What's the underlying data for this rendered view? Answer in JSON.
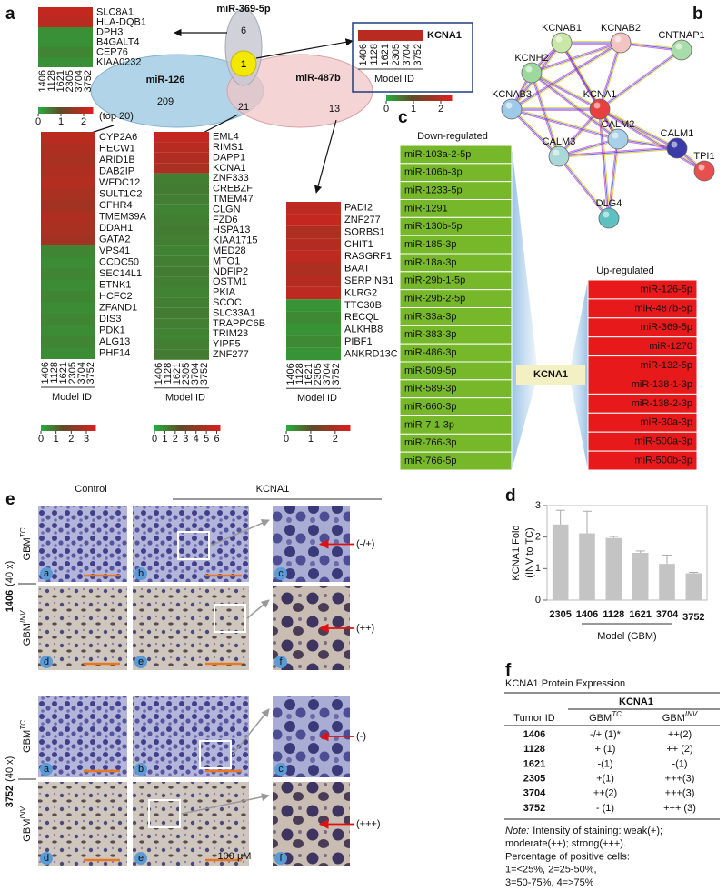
{
  "panel_labels": [
    "a",
    "b",
    "c",
    "d",
    "e",
    "f"
  ],
  "panel_a": {
    "venn": {
      "set_369": "miR-369-5p",
      "set_126": "miR-126",
      "set_487b": "miR-487b",
      "only_369": 6,
      "all_three": 1,
      "only_126": 209,
      "shared_126_487b": 21,
      "only_487b": 13,
      "top_note": "(top 20)"
    },
    "model_ids": [
      "1406",
      "1128",
      "1621",
      "2305",
      "3704",
      "3752"
    ],
    "model_axis_label": "Model  ID",
    "heatmaps": [
      {
        "genes": [
          "SLC8A1",
          "HLA-DQB1",
          "DPH3",
          "B4GALT4",
          "CEP76",
          "KIAA0232"
        ],
        "values": [
          2.1,
          2.0,
          0.3,
          0.3,
          0.4,
          0.3
        ],
        "scale_ticks": [
          0,
          1,
          2
        ],
        "scale_lim": [
          0,
          2.4
        ]
      },
      {
        "genes": [
          "KCNA1"
        ],
        "values": [
          2.0
        ],
        "scale_ticks": [
          0,
          1,
          2
        ],
        "scale_lim": [
          0,
          2.4
        ]
      },
      {
        "genes": [
          "CYP2A6",
          "HECW1",
          "ARID1B",
          "DAB2IP",
          "WFDC12",
          "SULT1C2",
          "CFHR4",
          "TMEM39A",
          "DDAH1",
          "GATA2",
          "VPS41",
          "CCDC50",
          "SEC14L1",
          "ETNK1",
          "HCFC2",
          "ZFAND1",
          "DIS3",
          "PDK1",
          "ALG13",
          "PHF14"
        ],
        "values": [
          3.0,
          2.8,
          2.7,
          2.8,
          2.9,
          2.7,
          2.6,
          2.8,
          2.7,
          2.6,
          0.6,
          0.5,
          0.6,
          0.5,
          0.6,
          0.5,
          0.6,
          0.5,
          0.6,
          0.5
        ],
        "scale_ticks": [
          0,
          1,
          2,
          3
        ],
        "scale_lim": [
          0,
          3.6
        ]
      },
      {
        "genes": [
          "EML4",
          "RIMS1",
          "DAPP1",
          "KCNA1",
          "ZNF333",
          "CREBZF",
          "TMEM47",
          "CLGN",
          "FZD6",
          "HSPA13",
          "KIAA1715",
          "MED28",
          "MTO1",
          "NDFIP2",
          "OSTM1",
          "PKIA",
          "SCOC",
          "SLC33A1",
          "TRAPPC6B",
          "TRIM23",
          "YIPF5",
          "ZNF277"
        ],
        "values": [
          5.5,
          5.2,
          5.0,
          4.8,
          1.2,
          1.3,
          1.2,
          1.1,
          1.2,
          1.3,
          1.2,
          1.1,
          1.2,
          1.3,
          1.2,
          1.1,
          1.2,
          1.3,
          1.2,
          1.1,
          1.2,
          1.3
        ],
        "scale_ticks": [
          0,
          1,
          2,
          3,
          4,
          5,
          6
        ],
        "scale_lim": [
          0,
          6.3
        ]
      },
      {
        "genes": [
          "PADI2",
          "ZNF277",
          "SORBS1",
          "CHIT1",
          "RASGRF1",
          "BAAT",
          "SERPINB1",
          "KLRG2",
          "TTC30B",
          "RECQL",
          "ALKHB8",
          "PIBF1",
          "ANKRD13C"
        ],
        "values": [
          2.2,
          2.3,
          2.0,
          2.1,
          2.2,
          2.0,
          2.1,
          2.2,
          0.3,
          0.4,
          0.3,
          0.4,
          0.3
        ],
        "scale_ticks": [
          0,
          1,
          2
        ],
        "scale_lim": [
          0,
          2.6
        ]
      }
    ]
  },
  "panel_b": {
    "nodes": [
      "KCNAB1",
      "KCNAB2",
      "CNTNAP1",
      "KCNH2",
      "KCNAB3",
      "KCNA1",
      "CALM2",
      "CALM1",
      "CALM3",
      "TPI1",
      "DLG4"
    ]
  },
  "panel_c": {
    "down_title": "Down-regulated",
    "down": [
      "miR-103a-2-5p",
      "miR-106b-3p",
      "miR-1233-5p",
      "miR-1291",
      "miR-130b-5p",
      "miR-185-3p",
      "miR-18a-3p",
      "miR-29b-1-5p",
      "miR-29b-2-5p",
      "miR-33a-3p",
      "miR-383-3p",
      "miR-486-3p",
      "miR-509-5p",
      "miR-589-3p",
      "miR-660-3p",
      "miR-7-1-3p",
      "miR-766-3p",
      "miR-766-5p"
    ],
    "up_title": "Up-regulated",
    "up": [
      "miR-126-5p",
      "miR-487b-5p",
      "miR-369-5p",
      "miR-1270",
      "miR-132-5p",
      "miR-138-1-3p",
      "miR-138-2-3p",
      "miR-30a-3p",
      "miR-500a-3p",
      "miR-500b-3p"
    ],
    "center": "KCNA1"
  },
  "chart_data": {
    "type": "bar",
    "ylabel": [
      "KCNA1 Fold",
      "(INV to TC)"
    ],
    "xlabel": "Model  (GBM)",
    "categories": [
      "2305",
      "1406",
      "1128",
      "1621",
      "3704",
      "3752"
    ],
    "values": [
      2.4,
      2.12,
      1.97,
      1.5,
      1.15,
      0.85
    ],
    "errors": [
      0.45,
      0.7,
      0.05,
      0.06,
      0.28,
      0.03
    ],
    "color": "#c4c4c4",
    "ylim": [
      0,
      3
    ],
    "yticks": [
      0,
      1,
      2,
      3
    ]
  },
  "panel_e": {
    "col_headers": [
      "Control",
      "KCNA1"
    ],
    "cases": [
      {
        "id": "1406",
        "mag": "(40 x)",
        "scores": [
          "(-/+)",
          "(++)"
        ]
      },
      {
        "id": "3752",
        "mag": "(40 x)",
        "scores": [
          "(-)",
          "(+++)"
        ]
      }
    ],
    "conditions": [
      {
        "base": "GBM",
        "sup": "TC"
      },
      {
        "base": "GBM",
        "sup": "INV"
      }
    ],
    "sub_letters": [
      "a",
      "b",
      "c",
      "d",
      "e",
      "f"
    ],
    "scale_note": "100 µM"
  },
  "panel_f": {
    "title": "KCNA1  Protein Expression",
    "group_header": "KCNA1",
    "columns": [
      "Tumor ID",
      {
        "base": "GBM",
        "sup": "TC"
      },
      {
        "base": "GBM",
        "sup": "INV"
      }
    ],
    "rows": [
      [
        "1406",
        "-/+ (1)*",
        "++(2)"
      ],
      [
        "1128",
        "+ (1)",
        "++ (2)"
      ],
      [
        "1621",
        "-(1)",
        "-(1)"
      ],
      [
        "2305",
        "+(1)",
        "+++(3)"
      ],
      [
        "3704",
        "++(2)",
        "+++(3)"
      ],
      [
        "3752",
        "- (1)",
        "+++ (3)"
      ]
    ],
    "note_label": "Note:",
    "note_lines": [
      "Intensity of staining: weak(+);",
      "moderate(++); strong(+++).",
      "Percentage of positive cells:",
      "1=<25%, 2=25-50%,",
      "3=50-75%, 4=>75%"
    ]
  }
}
